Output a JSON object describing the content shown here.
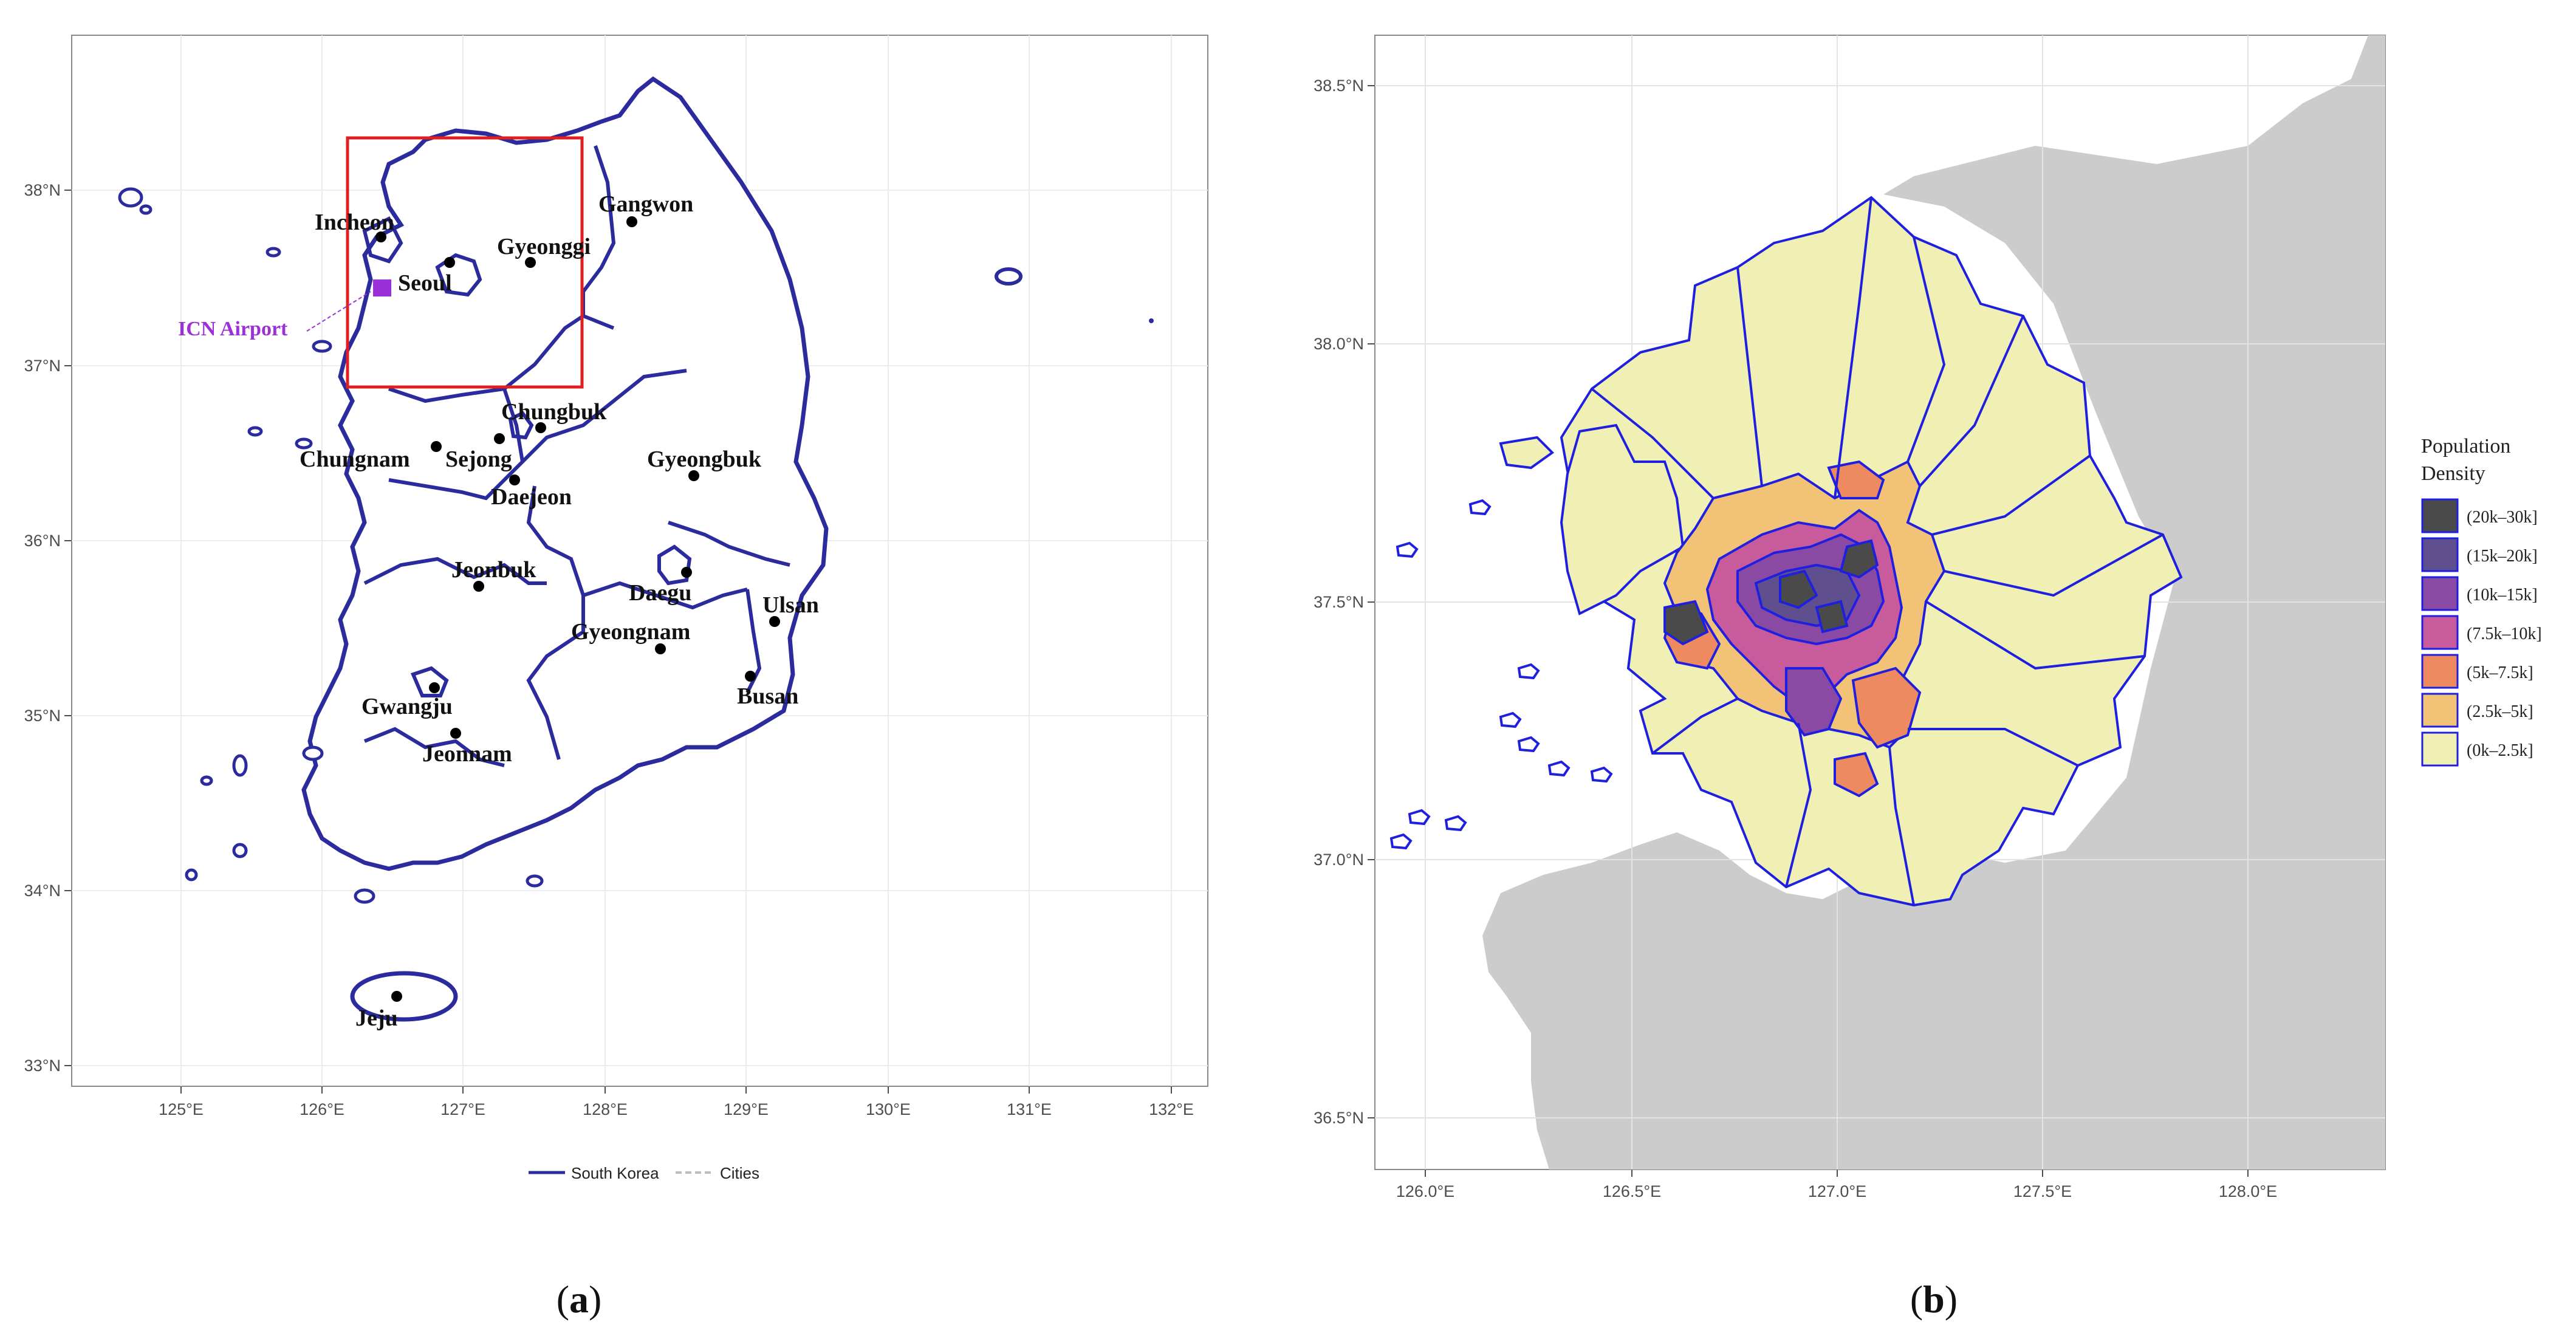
{
  "panel_a": {
    "caption_letter": "a",
    "lat_labels": [
      "38°N",
      "37°N",
      "36°N",
      "35°N",
      "34°N",
      "33°N"
    ],
    "lon_labels": [
      "125°E",
      "126°E",
      "127°E",
      "128°E",
      "129°E",
      "130°E",
      "131°E",
      "132°E"
    ],
    "cities": [
      {
        "name": "Incheon"
      },
      {
        "name": "Seoul"
      },
      {
        "name": "Gyeonggi"
      },
      {
        "name": "Gangwon"
      },
      {
        "name": "Chungbuk"
      },
      {
        "name": "Chungnam"
      },
      {
        "name": "Sejong"
      },
      {
        "name": "Daejeon"
      },
      {
        "name": "Gyeongbuk"
      },
      {
        "name": "Jeonbuk"
      },
      {
        "name": "Daegu"
      },
      {
        "name": "Ulsan"
      },
      {
        "name": "Gyeongnam"
      },
      {
        "name": "Gwangju"
      },
      {
        "name": "Busan"
      },
      {
        "name": "Jeonnam"
      },
      {
        "name": "Jeju"
      }
    ],
    "airport_label": "ICN Airport",
    "legend": {
      "south_korea": "South Korea",
      "cities": "Cities"
    },
    "colors": {
      "border": "#2b2b9e",
      "airport": "#9b30d9",
      "highlight_box": "#e02020",
      "city_lines": "#bdbdbd"
    }
  },
  "panel_b": {
    "caption_letter": "b",
    "lat_labels": [
      "38.5°N",
      "38.0°N",
      "37.5°N",
      "37.0°N",
      "36.5°N"
    ],
    "lon_labels": [
      "126.0°E",
      "126.5°E",
      "127.0°E",
      "127.5°E",
      "128.0°E"
    ],
    "legend_title": [
      "Population",
      "Density"
    ],
    "legend_items": [
      {
        "label": "(20k–30k]",
        "color": "#4a4a4a"
      },
      {
        "label": "(15k–20k]",
        "color": "#5f4f8f"
      },
      {
        "label": "(10k–15k]",
        "color": "#8a4aa3"
      },
      {
        "label": "(7.5k–10k]",
        "color": "#c75b9b"
      },
      {
        "label": "(5k–7.5k]",
        "color": "#ee8a60"
      },
      {
        "label": "(2.5k–5k]",
        "color": "#f2c277"
      },
      {
        "label": "(0k–2.5k]",
        "color": "#f1f0b4"
      }
    ],
    "colors": {
      "border": "#1f1fe0",
      "sea_land": "#cccccc"
    }
  }
}
